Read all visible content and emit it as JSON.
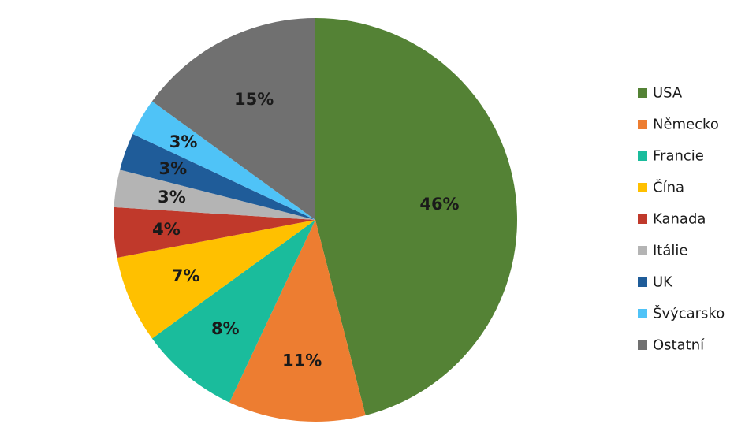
{
  "chart_data": {
    "type": "pie",
    "title": "",
    "legend_position": "right",
    "start_angle": "12 o'clock, clockwise",
    "slices": [
      {
        "label": "USA",
        "value": 46,
        "display": "46%",
        "color": "#548235"
      },
      {
        "label": "Německo",
        "value": 11,
        "display": "11%",
        "color": "#ED7D31"
      },
      {
        "label": "Francie",
        "value": 8,
        "display": "8%",
        "color": "#1ABC9C"
      },
      {
        "label": "Čína",
        "value": 7,
        "display": "7%",
        "color": "#FFC000"
      },
      {
        "label": "Kanada",
        "value": 4,
        "display": "4%",
        "color": "#C0392B"
      },
      {
        "label": "Itálie",
        "value": 3,
        "display": "3%",
        "color": "#B4B4B4"
      },
      {
        "label": "UK",
        "value": 3,
        "display": "3%",
        "color": "#1F5C99"
      },
      {
        "label": "Švýcarsko",
        "value": 3,
        "display": "3%",
        "color": "#4FC3F7"
      },
      {
        "label": "Ostatní",
        "value": 15,
        "display": "15%",
        "color": "#707070"
      }
    ]
  }
}
